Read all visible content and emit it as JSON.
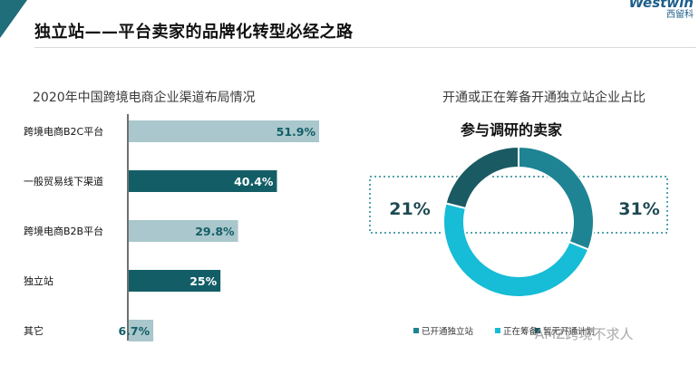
{
  "header": {
    "title": "独立站——平台卖家的品牌化转型必经之路",
    "brand_name": "Westwin",
    "brand_sub": "西留科",
    "accent": "#1f6e7a"
  },
  "colors": {
    "bar_light": "#a9c7cc",
    "bar_dark": "#135e66",
    "donut_dark": "#1a5a63",
    "donut_mid": "#1e8494",
    "donut_cyan": "#17bcd6",
    "dotted": "#1e8494"
  },
  "chart_data": [
    {
      "type": "bar",
      "orientation": "horizontal",
      "title": "2020年中国跨境电商企业渠道布局情况",
      "categories": [
        "跨境电商B2C平台",
        "一般贸易线下渠道",
        "跨境电商B2B平台",
        "独立站",
        "其它"
      ],
      "values": [
        51.9,
        40.4,
        29.8,
        25,
        6.7
      ],
      "labels": [
        "51.9%",
        "40.4%",
        "29.8%",
        "25%",
        "6.7%"
      ],
      "bar_styles": [
        "light",
        "dark",
        "light",
        "dark",
        "light"
      ],
      "xlim": [
        0,
        60
      ],
      "grid": false
    },
    {
      "type": "pie",
      "variant": "donut",
      "title": "开通或正在筹备开通独立站企业占比",
      "subtitle": "参与调研的卖家",
      "series": [
        {
          "name": "已开通独立站",
          "value": 31,
          "label": "31%"
        },
        {
          "name": "正在筹备",
          "value": 48,
          "label": ""
        },
        {
          "name": "暂无开通计划",
          "value": 21,
          "label": "21%"
        }
      ],
      "legend_placement": "bottom"
    }
  ],
  "watermark": "AMZ跨境不求人"
}
